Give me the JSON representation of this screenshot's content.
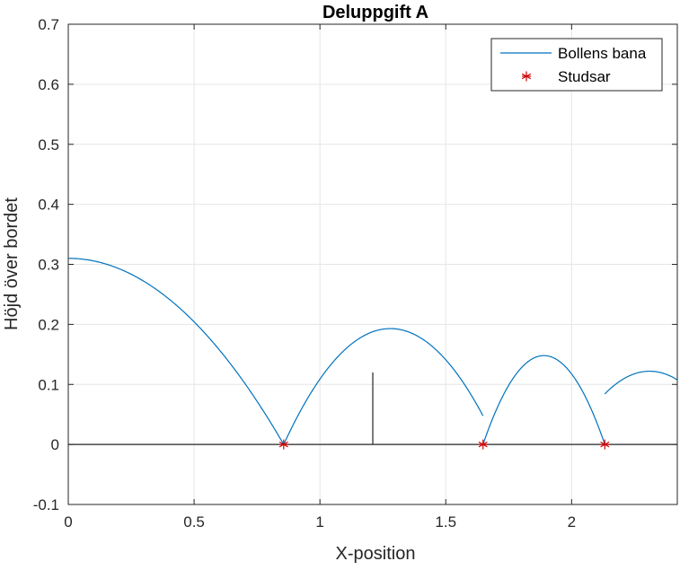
{
  "chart_data": {
    "type": "line",
    "title": "Deluppgift A",
    "xlabel": "X-position",
    "ylabel": "Höjd över bordet",
    "xlim": [
      0,
      2.42
    ],
    "ylim": [
      -0.1,
      0.7
    ],
    "xticks": [
      0,
      0.5,
      1,
      1.5,
      2
    ],
    "xtick_labels": [
      "0",
      "0.5",
      "1",
      "1.5",
      "2"
    ],
    "yticks": [
      -0.1,
      0,
      0.1,
      0.2,
      0.3,
      0.4,
      0.5,
      0.6,
      0.7
    ],
    "ytick_labels": [
      "-0.1",
      "0",
      "0.1",
      "0.2",
      "0.3",
      "0.4",
      "0.5",
      "0.6",
      "0.7"
    ],
    "grid": true,
    "legend_position": "top-right",
    "colors": {
      "trajectory": "#0072BD",
      "bounces": "#cc0000",
      "table": "#262626",
      "grid": "#e6e6e6",
      "axes": "#262626"
    },
    "series": [
      {
        "name": "Bollens bana",
        "kind": "line",
        "arcs": [
          {
            "x_start": 0.0,
            "x_end": 0.856,
            "peak_x": 0.0,
            "peak_y": 0.31
          },
          {
            "x_start": 0.856,
            "x_end": 1.648,
            "peak_x": 1.28,
            "peak_y": 0.193
          },
          {
            "x_start": 1.648,
            "x_end": 2.132,
            "peak_x": 1.89,
            "peak_y": 0.148
          },
          {
            "x_start": 2.132,
            "x_end": 2.63,
            "peak_x": 2.31,
            "peak_y": 0.122
          }
        ]
      },
      {
        "name": "Studsar",
        "kind": "markers",
        "marker": "asterisk",
        "x": [
          0.856,
          1.648,
          2.132
        ],
        "y": [
          0,
          0,
          0
        ]
      }
    ],
    "reference_lines": [
      {
        "kind": "table-surface",
        "x": [
          0,
          2.42
        ],
        "y": [
          0,
          0
        ]
      },
      {
        "kind": "net",
        "x": [
          1.21,
          1.21
        ],
        "y": [
          0,
          0.12
        ]
      }
    ]
  }
}
